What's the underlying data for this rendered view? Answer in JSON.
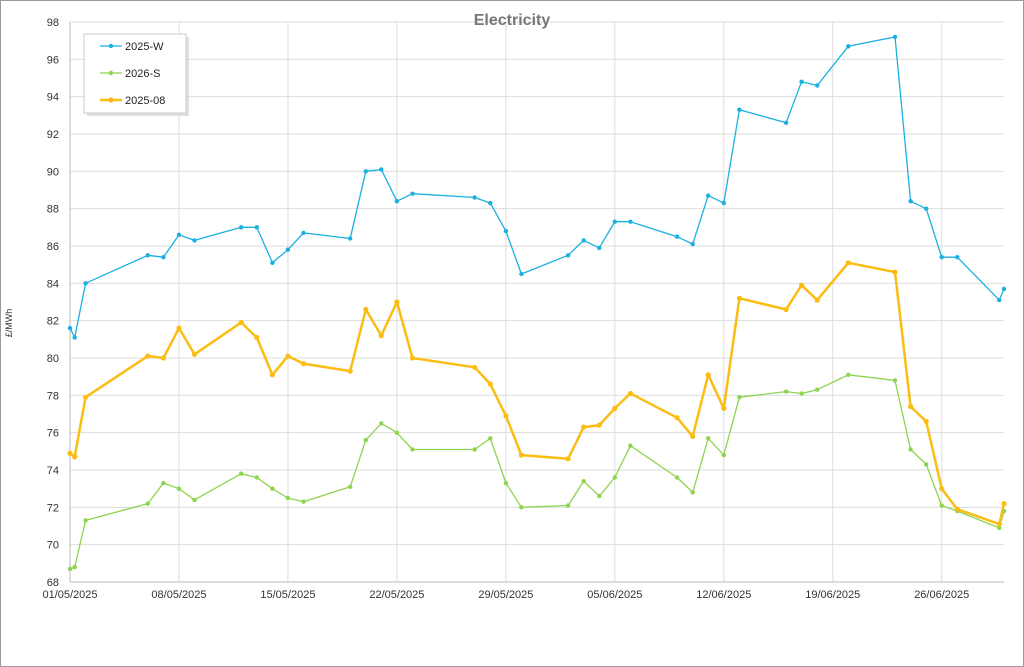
{
  "chart_data": {
    "type": "line",
    "title": "Electricity",
    "xlabel": "",
    "ylabel": "£/MWh",
    "ylim": [
      68,
      98
    ],
    "yticks": [
      "98",
      "96",
      "94",
      "92",
      "90",
      "88",
      "86",
      "84",
      "82",
      "80",
      "78",
      "76",
      "74",
      "72",
      "70",
      "68"
    ],
    "xlim": [
      "2025-05-01",
      "2025-06-30"
    ],
    "xticks": [
      "01/05/2025",
      "08/05/2025",
      "15/05/2025",
      "22/05/2025",
      "29/05/2025",
      "05/06/2025",
      "12/06/2025",
      "19/06/2025",
      "26/06/2025"
    ],
    "grid": true,
    "legend_position": "top-left",
    "series": [
      {
        "name": "2025-W",
        "color": "#1ab0e0",
        "thick": false,
        "points": [
          [
            "2025-05-01",
            81.6
          ],
          [
            "2025-05-01",
            81.1
          ],
          [
            "2025-05-02",
            84.0
          ],
          [
            "2025-05-06",
            85.5
          ],
          [
            "2025-05-07",
            85.4
          ],
          [
            "2025-05-08",
            86.6
          ],
          [
            "2025-05-09",
            86.3
          ],
          [
            "2025-05-12",
            87.0
          ],
          [
            "2025-05-13",
            87.0
          ],
          [
            "2025-05-14",
            85.1
          ],
          [
            "2025-05-15",
            85.8
          ],
          [
            "2025-05-16",
            86.7
          ],
          [
            "2025-05-19",
            86.4
          ],
          [
            "2025-05-20",
            90.0
          ],
          [
            "2025-05-21",
            90.1
          ],
          [
            "2025-05-22",
            88.4
          ],
          [
            "2025-05-23",
            88.8
          ],
          [
            "2025-05-27",
            88.6
          ],
          [
            "2025-05-28",
            88.3
          ],
          [
            "2025-05-29",
            86.8
          ],
          [
            "2025-05-30",
            84.5
          ],
          [
            "2025-06-02",
            85.5
          ],
          [
            "2025-06-03",
            86.3
          ],
          [
            "2025-06-04",
            85.9
          ],
          [
            "2025-06-05",
            87.3
          ],
          [
            "2025-06-06",
            87.3
          ],
          [
            "2025-06-09",
            86.5
          ],
          [
            "2025-06-10",
            86.1
          ],
          [
            "2025-06-11",
            88.7
          ],
          [
            "2025-06-12",
            88.3
          ],
          [
            "2025-06-13",
            93.3
          ],
          [
            "2025-06-16",
            92.6
          ],
          [
            "2025-06-17",
            94.8
          ],
          [
            "2025-06-18",
            94.6
          ],
          [
            "2025-06-20",
            96.7
          ],
          [
            "2025-06-23",
            97.2
          ],
          [
            "2025-06-24",
            88.4
          ],
          [
            "2025-06-25",
            88.0
          ],
          [
            "2025-06-26",
            85.4
          ],
          [
            "2025-06-27",
            85.4
          ],
          [
            "2025-06-30",
            83.1
          ],
          [
            "2025-06-30",
            83.7
          ]
        ]
      },
      {
        "name": "2026-S",
        "color": "#8ed44f",
        "thick": false,
        "points": [
          [
            "2025-05-01",
            68.7
          ],
          [
            "2025-05-01",
            68.8
          ],
          [
            "2025-05-02",
            71.3
          ],
          [
            "2025-05-06",
            72.2
          ],
          [
            "2025-05-07",
            73.3
          ],
          [
            "2025-05-08",
            73.0
          ],
          [
            "2025-05-09",
            72.4
          ],
          [
            "2025-05-12",
            73.8
          ],
          [
            "2025-05-13",
            73.6
          ],
          [
            "2025-05-14",
            73.0
          ],
          [
            "2025-05-15",
            72.5
          ],
          [
            "2025-05-16",
            72.3
          ],
          [
            "2025-05-19",
            73.1
          ],
          [
            "2025-05-20",
            75.6
          ],
          [
            "2025-05-21",
            76.5
          ],
          [
            "2025-05-22",
            76.0
          ],
          [
            "2025-05-23",
            75.1
          ],
          [
            "2025-05-27",
            75.1
          ],
          [
            "2025-05-28",
            75.7
          ],
          [
            "2025-05-29",
            73.3
          ],
          [
            "2025-05-30",
            72.0
          ],
          [
            "2025-06-02",
            72.1
          ],
          [
            "2025-06-03",
            73.4
          ],
          [
            "2025-06-04",
            72.6
          ],
          [
            "2025-06-05",
            73.6
          ],
          [
            "2025-06-06",
            75.3
          ],
          [
            "2025-06-09",
            73.6
          ],
          [
            "2025-06-10",
            72.8
          ],
          [
            "2025-06-11",
            75.7
          ],
          [
            "2025-06-12",
            74.8
          ],
          [
            "2025-06-13",
            77.9
          ],
          [
            "2025-06-16",
            78.2
          ],
          [
            "2025-06-17",
            78.1
          ],
          [
            "2025-06-18",
            78.3
          ],
          [
            "2025-06-20",
            79.1
          ],
          [
            "2025-06-23",
            78.8
          ],
          [
            "2025-06-24",
            75.1
          ],
          [
            "2025-06-25",
            74.3
          ],
          [
            "2025-06-26",
            72.1
          ],
          [
            "2025-06-27",
            71.8
          ],
          [
            "2025-06-30",
            70.9
          ],
          [
            "2025-06-30",
            71.8
          ]
        ]
      },
      {
        "name": "2025-08",
        "color": "#fbbd12",
        "thick": true,
        "points": [
          [
            "2025-05-01",
            74.9
          ],
          [
            "2025-05-01",
            74.7
          ],
          [
            "2025-05-02",
            77.9
          ],
          [
            "2025-05-06",
            80.1
          ],
          [
            "2025-05-07",
            80.0
          ],
          [
            "2025-05-08",
            81.6
          ],
          [
            "2025-05-09",
            80.2
          ],
          [
            "2025-05-12",
            81.9
          ],
          [
            "2025-05-13",
            81.1
          ],
          [
            "2025-05-14",
            79.1
          ],
          [
            "2025-05-15",
            80.1
          ],
          [
            "2025-05-16",
            79.7
          ],
          [
            "2025-05-19",
            79.3
          ],
          [
            "2025-05-20",
            82.6
          ],
          [
            "2025-05-21",
            81.2
          ],
          [
            "2025-05-22",
            83.0
          ],
          [
            "2025-05-23",
            80.0
          ],
          [
            "2025-05-27",
            79.5
          ],
          [
            "2025-05-28",
            78.6
          ],
          [
            "2025-05-29",
            76.9
          ],
          [
            "2025-05-30",
            74.8
          ],
          [
            "2025-06-02",
            74.6
          ],
          [
            "2025-06-03",
            76.3
          ],
          [
            "2025-06-04",
            76.4
          ],
          [
            "2025-06-05",
            77.3
          ],
          [
            "2025-06-06",
            78.1
          ],
          [
            "2025-06-09",
            76.8
          ],
          [
            "2025-06-10",
            75.8
          ],
          [
            "2025-06-11",
            79.1
          ],
          [
            "2025-06-12",
            77.3
          ],
          [
            "2025-06-13",
            83.2
          ],
          [
            "2025-06-16",
            82.6
          ],
          [
            "2025-06-17",
            83.9
          ],
          [
            "2025-06-18",
            83.1
          ],
          [
            "2025-06-20",
            85.1
          ],
          [
            "2025-06-23",
            84.6
          ],
          [
            "2025-06-24",
            77.4
          ],
          [
            "2025-06-25",
            76.6
          ],
          [
            "2025-06-26",
            73.0
          ],
          [
            "2025-06-27",
            71.9
          ],
          [
            "2025-06-30",
            71.1
          ],
          [
            "2025-06-30",
            72.2
          ]
        ]
      }
    ]
  }
}
